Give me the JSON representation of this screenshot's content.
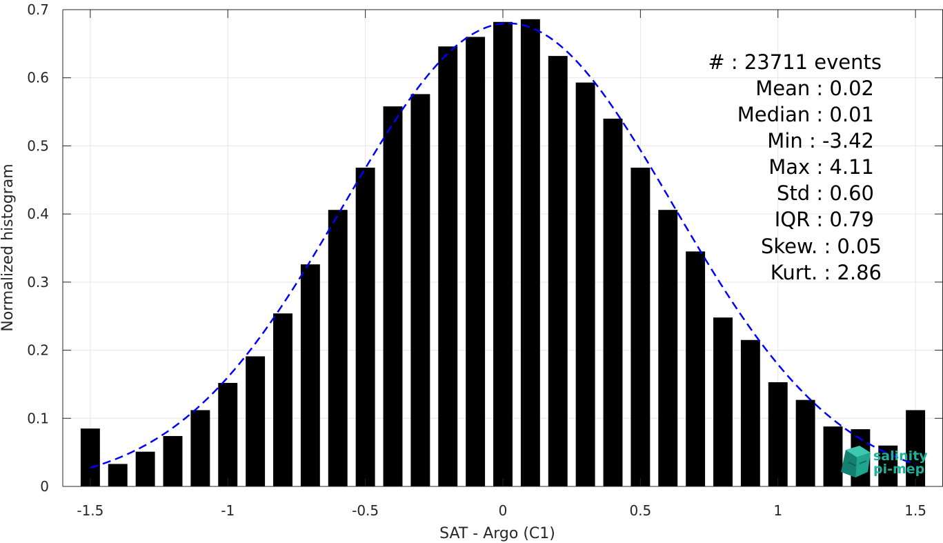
{
  "chart_data": {
    "type": "bar",
    "xlabel": "SAT - Argo (C1)",
    "ylabel": "Normalized histogram",
    "xlim": [
      -1.6,
      1.6
    ],
    "ylim": [
      0,
      0.7
    ],
    "xticks": [
      -1.5,
      -1,
      -0.5,
      0,
      0.5,
      1,
      1.5
    ],
    "xtick_labels": [
      "-1.5",
      "-1",
      "-0.5",
      "0",
      "0.5",
      "1",
      "1.5"
    ],
    "yticks": [
      0,
      0.1,
      0.2,
      0.3,
      0.4,
      0.5,
      0.6,
      0.7
    ],
    "ytick_labels": [
      "0",
      "0.1",
      "0.2",
      "0.3",
      "0.4",
      "0.5",
      "0.6",
      "0.7"
    ],
    "grid": true,
    "bar_width": 0.07,
    "bars": {
      "x": [
        -1.5,
        -1.4,
        -1.3,
        -1.2,
        -1.1,
        -1.0,
        -0.9,
        -0.8,
        -0.7,
        -0.6,
        -0.5,
        -0.4,
        -0.3,
        -0.2,
        -0.1,
        0.0,
        0.1,
        0.2,
        0.3,
        0.4,
        0.5,
        0.6,
        0.7,
        0.8,
        0.9,
        1.0,
        1.1,
        1.2,
        1.3,
        1.4,
        1.5
      ],
      "values": [
        0.085,
        0.033,
        0.051,
        0.074,
        0.112,
        0.152,
        0.191,
        0.254,
        0.326,
        0.406,
        0.468,
        0.558,
        0.576,
        0.646,
        0.66,
        0.682,
        0.686,
        0.632,
        0.593,
        0.54,
        0.468,
        0.406,
        0.345,
        0.248,
        0.215,
        0.153,
        0.127,
        0.088,
        0.084,
        0.06,
        0.112
      ],
      "color": "#000000"
    },
    "fit_curve": {
      "style": "dashed",
      "color": "#0000ff",
      "mean": 0.02,
      "std": 0.6,
      "peak": 0.68,
      "x_range": [
        -1.5,
        1.5
      ]
    },
    "stats": [
      {
        "text": "#  : 23711 events"
      },
      {
        "text": "Mean : 0.02"
      },
      {
        "text": "Median : 0.01"
      },
      {
        "text": "Min : -3.42"
      },
      {
        "text": "Max : 4.11"
      },
      {
        "text": "Std : 0.60"
      },
      {
        "text": "IQR : 0.79"
      },
      {
        "text": "Skew. : 0.05"
      },
      {
        "text": "Kurt. : 2.86"
      }
    ]
  },
  "logo": {
    "line1": "salinity",
    "line2": "pi-mep",
    "color": "#1fb09a",
    "icon": "cube-logo-icon"
  }
}
